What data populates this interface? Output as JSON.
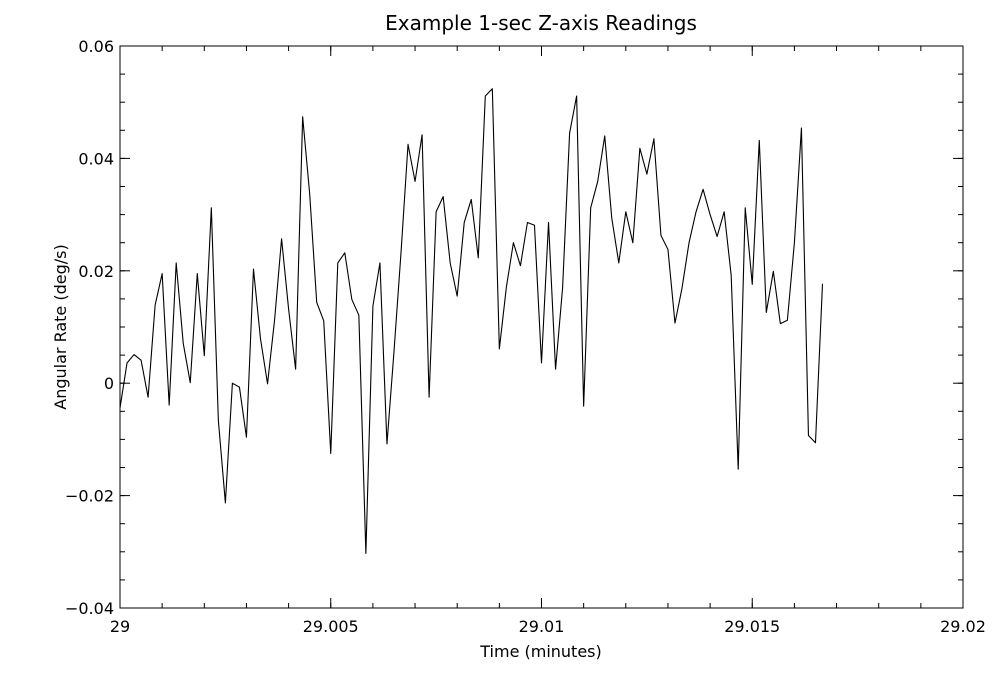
{
  "chart_data": {
    "type": "line",
    "title": "Example 1-sec Z-axis Readings",
    "xlabel": "Time (minutes)",
    "ylabel": "Angular Rate (deg/s)",
    "xlim": [
      29,
      29.02
    ],
    "ylim": [
      -0.04,
      0.06
    ],
    "xticks": [
      29,
      29.005,
      29.01,
      29.015,
      29.02
    ],
    "xtick_labels": [
      "29",
      "29.005",
      "29.01",
      "29.015",
      "29.02"
    ],
    "yticks": [
      -0.04,
      -0.02,
      0,
      0.02,
      0.04,
      0.06
    ],
    "ytick_labels": [
      "−0.04",
      "−0.02",
      "0",
      "0.02",
      "0.04",
      "0.06"
    ],
    "x_minor_step": 0.001,
    "y_minor_step": 0.005,
    "grid": false,
    "line_color": "#000000",
    "series": [
      {
        "x_start": 29.0,
        "x_step": 0.000166667,
        "values": [
          -0.0044,
          0.0036,
          0.0051,
          0.0041,
          -0.0025,
          0.0139,
          0.0195,
          -0.0039,
          0.0214,
          0.0071,
          0.0001,
          0.0195,
          0.0049,
          0.0312,
          -0.0066,
          -0.0213,
          0.0,
          -0.0007,
          -0.0096,
          0.0203,
          0.0079,
          -0.0001,
          0.0112,
          0.0257,
          0.0132,
          0.0025,
          0.0474,
          0.0337,
          0.0144,
          0.0111,
          -0.0125,
          0.0214,
          0.0232,
          0.0149,
          0.0121,
          -0.0303,
          0.0137,
          0.0214,
          -0.0108,
          0.0056,
          0.0232,
          0.0425,
          0.0359,
          0.0442,
          -0.0025,
          0.0305,
          0.0332,
          0.0214,
          0.0155,
          0.0286,
          0.0327,
          0.0223,
          0.0511,
          0.0524,
          0.0061,
          0.0171,
          0.025,
          0.0209,
          0.0286,
          0.0281,
          0.0036,
          0.0286,
          0.0025,
          0.0169,
          0.0445,
          0.0511,
          -0.0041,
          0.0312,
          0.0359,
          0.044,
          0.0294,
          0.0214,
          0.0305,
          0.025,
          0.0418,
          0.0372,
          0.0435,
          0.0263,
          0.0238,
          0.0107,
          0.0169,
          0.025,
          0.0305,
          0.0345,
          0.03,
          0.0261,
          0.0305,
          0.0192,
          -0.0153,
          0.0312,
          0.0176,
          0.0432,
          0.0126,
          0.0199,
          0.0106,
          0.0112,
          0.025,
          0.0454,
          -0.0093,
          -0.0106,
          0.0177
        ]
      }
    ]
  }
}
